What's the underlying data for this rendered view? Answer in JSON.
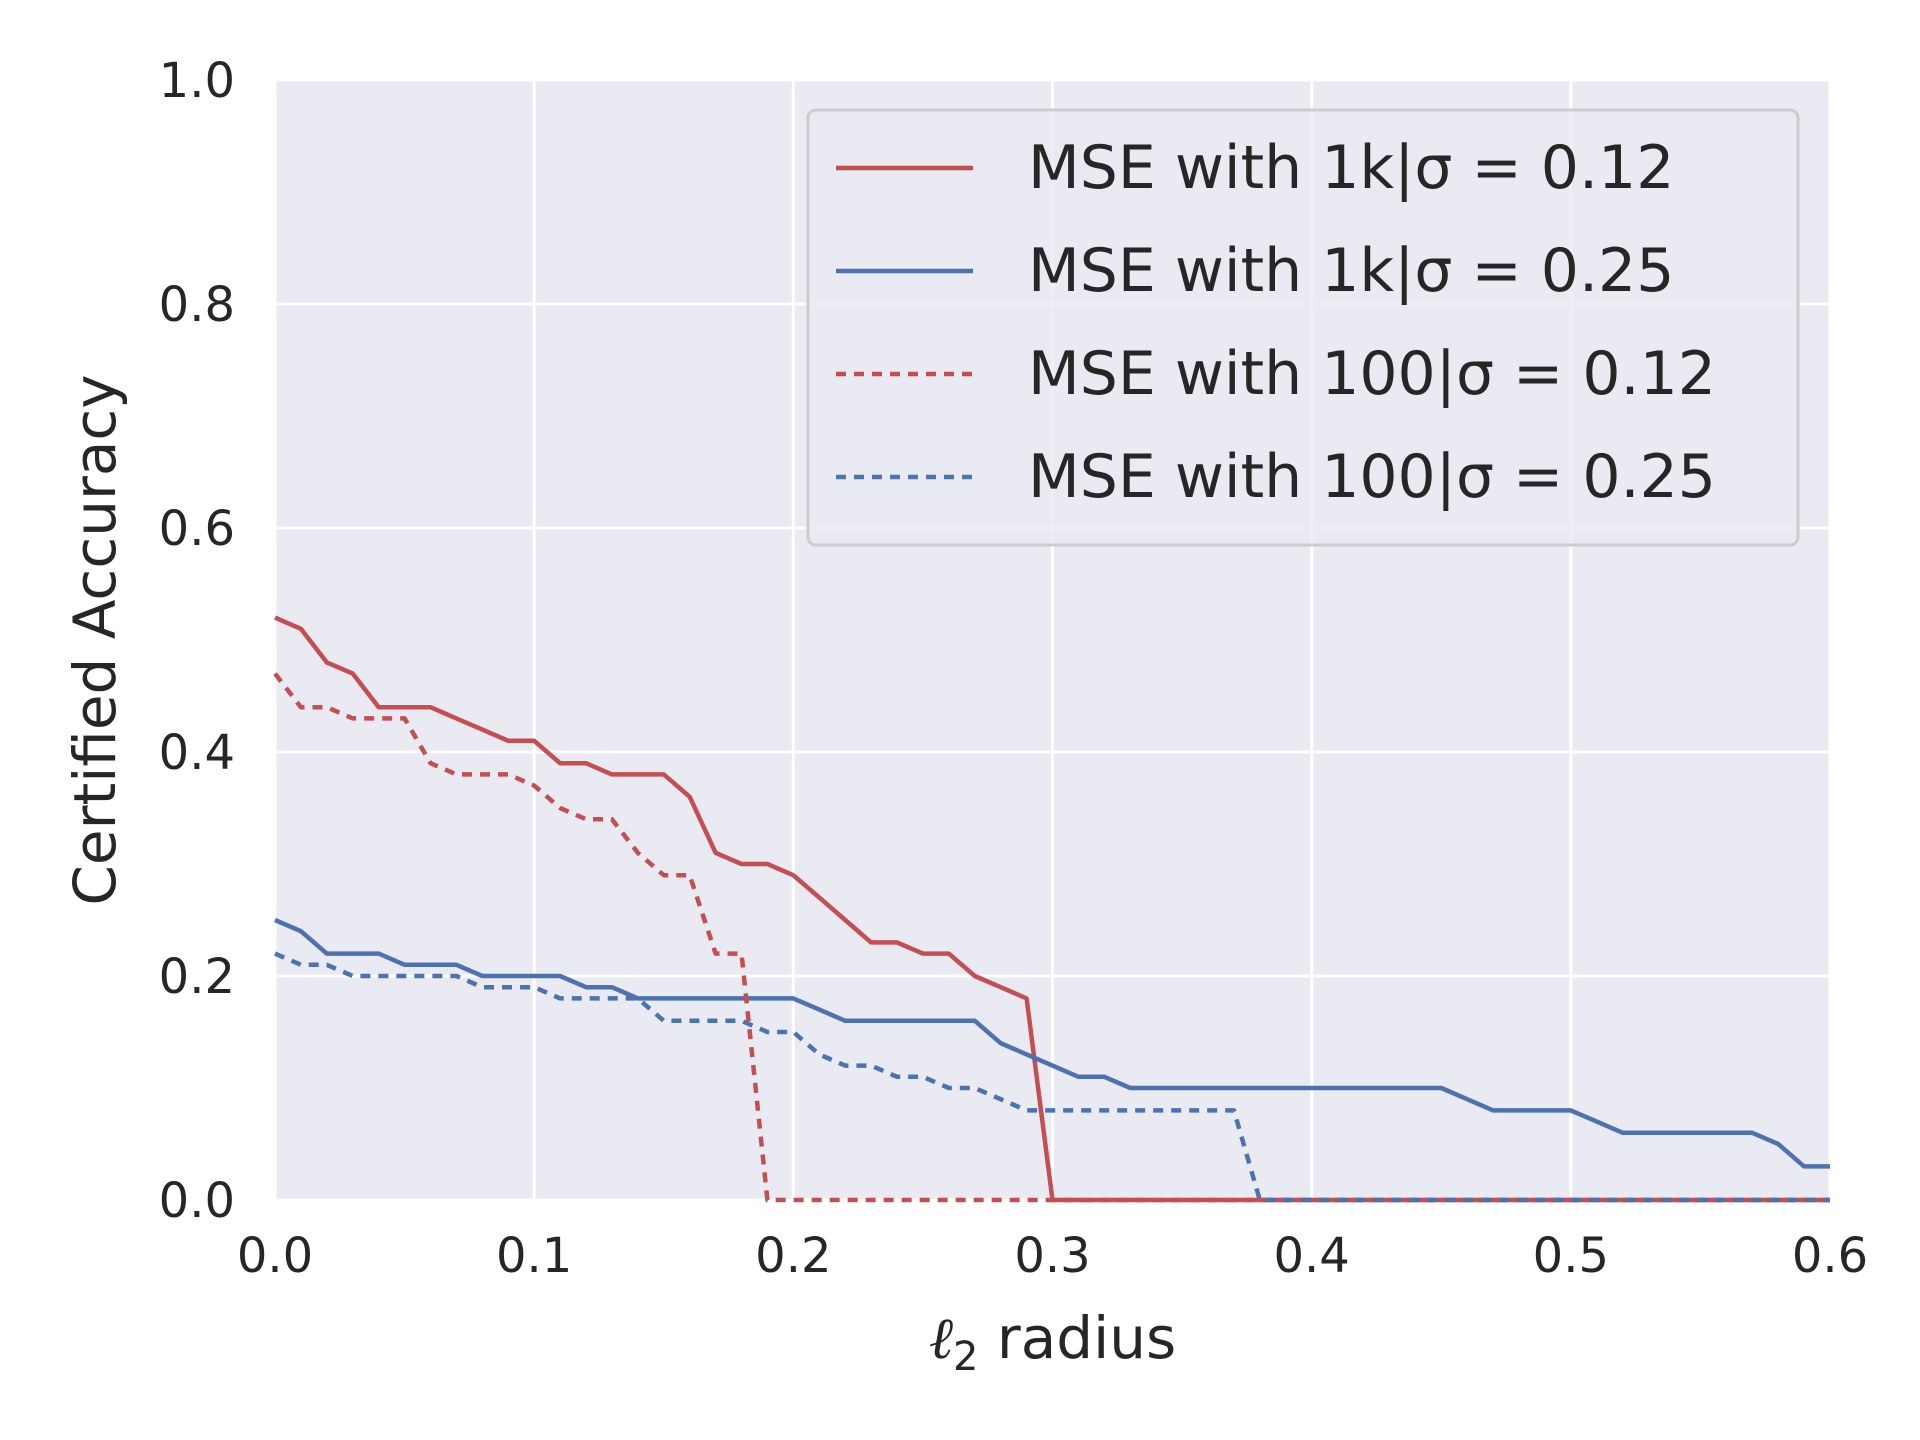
{
  "chart_data": {
    "type": "line",
    "xlabel": "ℓ₂ radius",
    "xlabel_parts": {
      "ell": "ℓ",
      "sub": "2",
      "rest": " radius"
    },
    "ylabel": "Certified Accuracy",
    "xlim": [
      0.0,
      0.6
    ],
    "ylim": [
      0.0,
      1.0
    ],
    "xticks": [
      "0.0",
      "0.1",
      "0.2",
      "0.3",
      "0.4",
      "0.5",
      "0.6"
    ],
    "yticks": [
      "0.0",
      "0.2",
      "0.4",
      "0.6",
      "0.8",
      "1.0"
    ],
    "xtick_values": [
      0.0,
      0.1,
      0.2,
      0.3,
      0.4,
      0.5,
      0.6
    ],
    "ytick_values": [
      0.0,
      0.2,
      0.4,
      0.6,
      0.8,
      1.0
    ],
    "grid": true,
    "background": "#eaeaf2",
    "grid_color": "#ffffff",
    "legend_position": "top-right",
    "series": [
      {
        "name": "MSE with 1k|σ = 0.12",
        "color": "#c44e52",
        "style": "solid",
        "points": [
          [
            0.0,
            0.52
          ],
          [
            0.01,
            0.51
          ],
          [
            0.02,
            0.48
          ],
          [
            0.03,
            0.47
          ],
          [
            0.04,
            0.44
          ],
          [
            0.05,
            0.44
          ],
          [
            0.06,
            0.44
          ],
          [
            0.07,
            0.43
          ],
          [
            0.08,
            0.42
          ],
          [
            0.09,
            0.41
          ],
          [
            0.1,
            0.41
          ],
          [
            0.11,
            0.39
          ],
          [
            0.12,
            0.39
          ],
          [
            0.13,
            0.38
          ],
          [
            0.14,
            0.38
          ],
          [
            0.15,
            0.38
          ],
          [
            0.16,
            0.36
          ],
          [
            0.17,
            0.31
          ],
          [
            0.18,
            0.3
          ],
          [
            0.19,
            0.3
          ],
          [
            0.2,
            0.29
          ],
          [
            0.21,
            0.27
          ],
          [
            0.22,
            0.25
          ],
          [
            0.23,
            0.23
          ],
          [
            0.24,
            0.23
          ],
          [
            0.25,
            0.22
          ],
          [
            0.26,
            0.22
          ],
          [
            0.27,
            0.2
          ],
          [
            0.28,
            0.19
          ],
          [
            0.29,
            0.18
          ],
          [
            0.3,
            0.0
          ],
          [
            0.6,
            0.0
          ]
        ]
      },
      {
        "name": "MSE with 1k|σ = 0.25",
        "color": "#4c72b0",
        "style": "solid",
        "points": [
          [
            0.0,
            0.25
          ],
          [
            0.01,
            0.24
          ],
          [
            0.02,
            0.22
          ],
          [
            0.03,
            0.22
          ],
          [
            0.04,
            0.22
          ],
          [
            0.05,
            0.21
          ],
          [
            0.06,
            0.21
          ],
          [
            0.07,
            0.21
          ],
          [
            0.08,
            0.2
          ],
          [
            0.09,
            0.2
          ],
          [
            0.1,
            0.2
          ],
          [
            0.11,
            0.2
          ],
          [
            0.12,
            0.19
          ],
          [
            0.13,
            0.19
          ],
          [
            0.14,
            0.18
          ],
          [
            0.15,
            0.18
          ],
          [
            0.2,
            0.18
          ],
          [
            0.21,
            0.17
          ],
          [
            0.22,
            0.16
          ],
          [
            0.27,
            0.16
          ],
          [
            0.28,
            0.14
          ],
          [
            0.29,
            0.13
          ],
          [
            0.3,
            0.12
          ],
          [
            0.31,
            0.11
          ],
          [
            0.32,
            0.11
          ],
          [
            0.33,
            0.1
          ],
          [
            0.45,
            0.1
          ],
          [
            0.46,
            0.09
          ],
          [
            0.47,
            0.08
          ],
          [
            0.5,
            0.08
          ],
          [
            0.51,
            0.07
          ],
          [
            0.52,
            0.06
          ],
          [
            0.57,
            0.06
          ],
          [
            0.58,
            0.05
          ],
          [
            0.59,
            0.03
          ],
          [
            0.6,
            0.03
          ]
        ]
      },
      {
        "name": "MSE with 100|σ = 0.12",
        "color": "#c44e52",
        "style": "dotted",
        "points": [
          [
            0.0,
            0.47
          ],
          [
            0.01,
            0.44
          ],
          [
            0.02,
            0.44
          ],
          [
            0.03,
            0.43
          ],
          [
            0.04,
            0.43
          ],
          [
            0.05,
            0.43
          ],
          [
            0.06,
            0.39
          ],
          [
            0.07,
            0.38
          ],
          [
            0.08,
            0.38
          ],
          [
            0.09,
            0.38
          ],
          [
            0.1,
            0.37
          ],
          [
            0.11,
            0.35
          ],
          [
            0.12,
            0.34
          ],
          [
            0.13,
            0.34
          ],
          [
            0.14,
            0.31
          ],
          [
            0.15,
            0.29
          ],
          [
            0.16,
            0.29
          ],
          [
            0.17,
            0.22
          ],
          [
            0.18,
            0.22
          ],
          [
            0.19,
            0.0
          ],
          [
            0.6,
            0.0
          ]
        ]
      },
      {
        "name": "MSE with 100|σ = 0.25",
        "color": "#4c72b0",
        "style": "dotted",
        "points": [
          [
            0.0,
            0.22
          ],
          [
            0.01,
            0.21
          ],
          [
            0.02,
            0.21
          ],
          [
            0.03,
            0.2
          ],
          [
            0.04,
            0.2
          ],
          [
            0.05,
            0.2
          ],
          [
            0.06,
            0.2
          ],
          [
            0.07,
            0.2
          ],
          [
            0.08,
            0.19
          ],
          [
            0.09,
            0.19
          ],
          [
            0.1,
            0.19
          ],
          [
            0.11,
            0.18
          ],
          [
            0.12,
            0.18
          ],
          [
            0.13,
            0.18
          ],
          [
            0.14,
            0.18
          ],
          [
            0.15,
            0.16
          ],
          [
            0.18,
            0.16
          ],
          [
            0.19,
            0.15
          ],
          [
            0.2,
            0.15
          ],
          [
            0.21,
            0.13
          ],
          [
            0.22,
            0.12
          ],
          [
            0.23,
            0.12
          ],
          [
            0.24,
            0.11
          ],
          [
            0.25,
            0.11
          ],
          [
            0.26,
            0.1
          ],
          [
            0.27,
            0.1
          ],
          [
            0.28,
            0.09
          ],
          [
            0.29,
            0.08
          ],
          [
            0.37,
            0.08
          ],
          [
            0.38,
            0.0
          ],
          [
            0.6,
            0.0
          ]
        ]
      }
    ]
  }
}
